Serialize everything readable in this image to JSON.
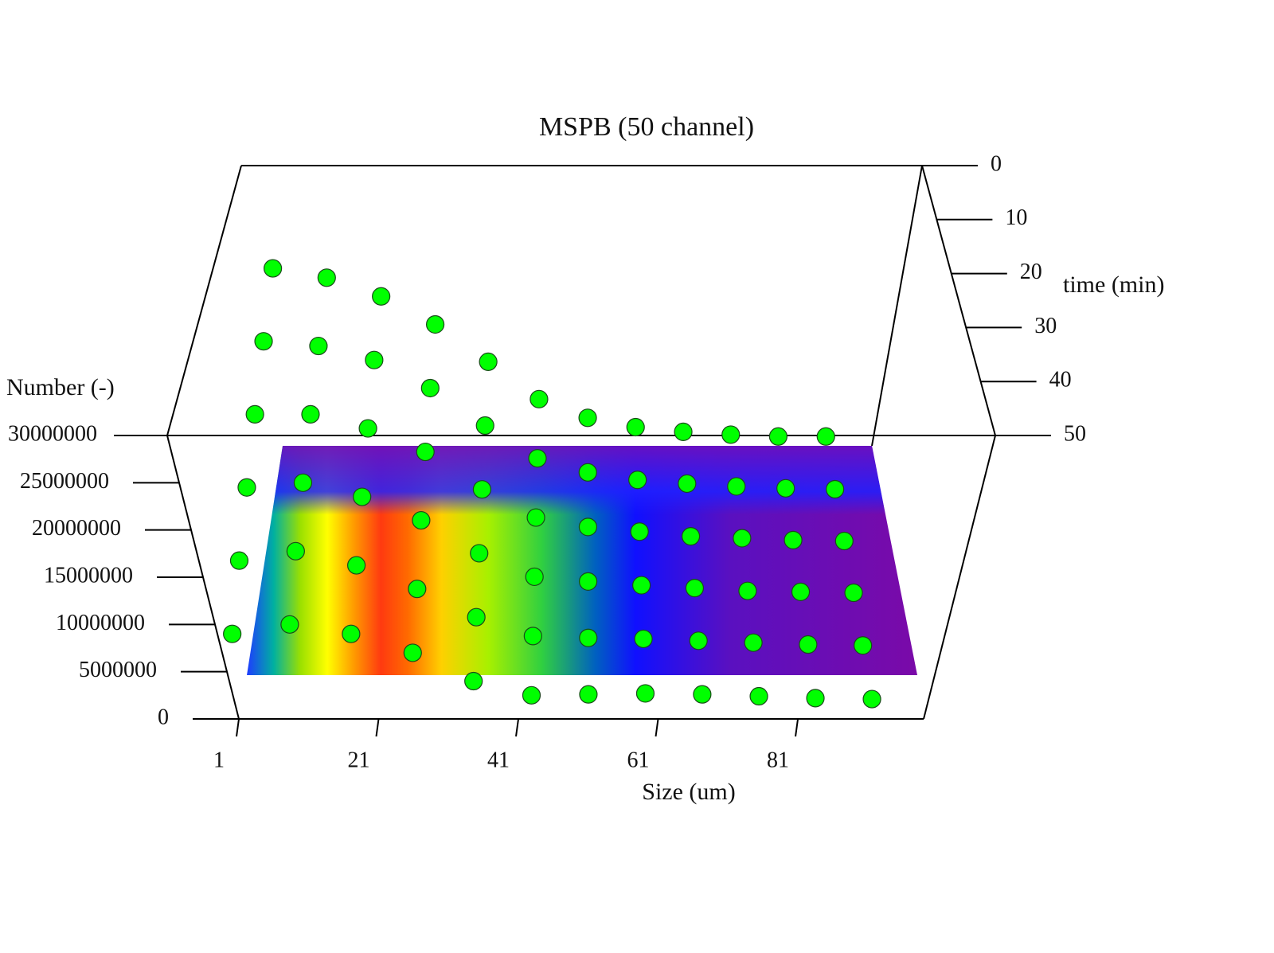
{
  "chart_data": {
    "type": "scatter3d",
    "title": "MSPB (50 channel)",
    "x_label": "Size (um)",
    "y_label": "time (min)",
    "z_label": "Number (-)",
    "color": "#00ff00",
    "xlim": [
      1,
      99
    ],
    "xticks": [
      1,
      21,
      41,
      61,
      81
    ],
    "ylim": [
      0,
      50
    ],
    "yticks": [
      0,
      10,
      20,
      30,
      40,
      50
    ],
    "zlim": [
      0,
      30000000
    ],
    "zticks": [
      0,
      5000000,
      10000000,
      15000000,
      20000000,
      25000000,
      30000000
    ],
    "x": [
      3,
      11,
      19,
      27,
      35,
      43,
      51,
      59,
      67,
      75,
      83,
      91
    ],
    "series": [
      {
        "time": 0,
        "values": [
          19000000,
          18000000,
          16000000,
          13000000,
          9000000,
          5000000,
          3000000,
          2000000,
          1500000,
          1200000,
          1000000,
          1000000
        ]
      },
      {
        "time": 10,
        "values": [
          17000000,
          16500000,
          15000000,
          12000000,
          8000000,
          4500000,
          3000000,
          2200000,
          1800000,
          1500000,
          1300000,
          1200000
        ]
      },
      {
        "time": 20,
        "values": [
          15000000,
          15000000,
          13500000,
          11000000,
          7000000,
          4000000,
          3000000,
          2500000,
          2000000,
          1800000,
          1600000,
          1500000
        ]
      },
      {
        "time": 30,
        "values": [
          13000000,
          13500000,
          12000000,
          9500000,
          6000000,
          3500000,
          3000000,
          2600000,
          2300000,
          2000000,
          1900000,
          1800000
        ]
      },
      {
        "time": 40,
        "values": [
          11000000,
          12000000,
          10500000,
          8000000,
          5000000,
          3000000,
          2800000,
          2700000,
          2500000,
          2300000,
          2100000,
          2000000
        ]
      },
      {
        "time": 50,
        "values": [
          9000000,
          10000000,
          9000000,
          7000000,
          4000000,
          2500000,
          2600000,
          2700000,
          2600000,
          2400000,
          2200000,
          2100000
        ]
      }
    ]
  }
}
